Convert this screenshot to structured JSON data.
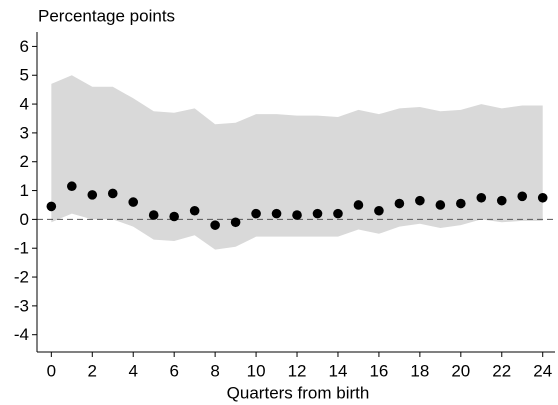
{
  "chart_data": {
    "type": "scatter",
    "ylabel": "Percentage points",
    "xlabel": "Quarters from birth",
    "x": [
      0,
      1,
      2,
      3,
      4,
      5,
      6,
      7,
      8,
      9,
      10,
      11,
      12,
      13,
      14,
      15,
      16,
      17,
      18,
      19,
      20,
      21,
      22,
      23,
      24
    ],
    "series": [
      {
        "color": "#000000",
        "values": [
          0.45,
          1.15,
          0.85,
          0.9,
          0.6,
          0.15,
          0.1,
          0.3,
          -0.2,
          -0.1,
          0.2,
          0.2,
          0.15,
          0.2,
          0.2,
          0.5,
          0.3,
          0.55,
          0.65,
          0.5,
          0.55,
          0.75,
          0.65,
          0.8,
          0.75
        ]
      }
    ],
    "band": {
      "color": "#d9d9d9",
      "upper": [
        4.7,
        5.0,
        4.6,
        4.6,
        4.2,
        3.75,
        3.7,
        3.85,
        3.3,
        3.35,
        3.65,
        3.65,
        3.6,
        3.6,
        3.55,
        3.8,
        3.65,
        3.85,
        3.9,
        3.75,
        3.8,
        4.0,
        3.85,
        3.95,
        3.95
      ],
      "lower": [
        -0.1,
        0.2,
        0.0,
        0.0,
        -0.25,
        -0.7,
        -0.75,
        -0.55,
        -1.05,
        -0.95,
        -0.6,
        -0.6,
        -0.6,
        -0.6,
        -0.6,
        -0.35,
        -0.5,
        -0.25,
        -0.15,
        -0.3,
        -0.2,
        0.0,
        -0.1,
        -0.05,
        -0.05
      ]
    },
    "hline": 0,
    "xlim": [
      -0.7,
      24.6
    ],
    "ylim": [
      -4.6,
      6.5
    ],
    "xticks": [
      0,
      2,
      4,
      6,
      8,
      10,
      12,
      14,
      16,
      18,
      20,
      22,
      24
    ],
    "yticks": [
      -4,
      -3,
      -2,
      -1,
      0,
      1,
      2,
      3,
      4,
      5,
      6
    ]
  }
}
